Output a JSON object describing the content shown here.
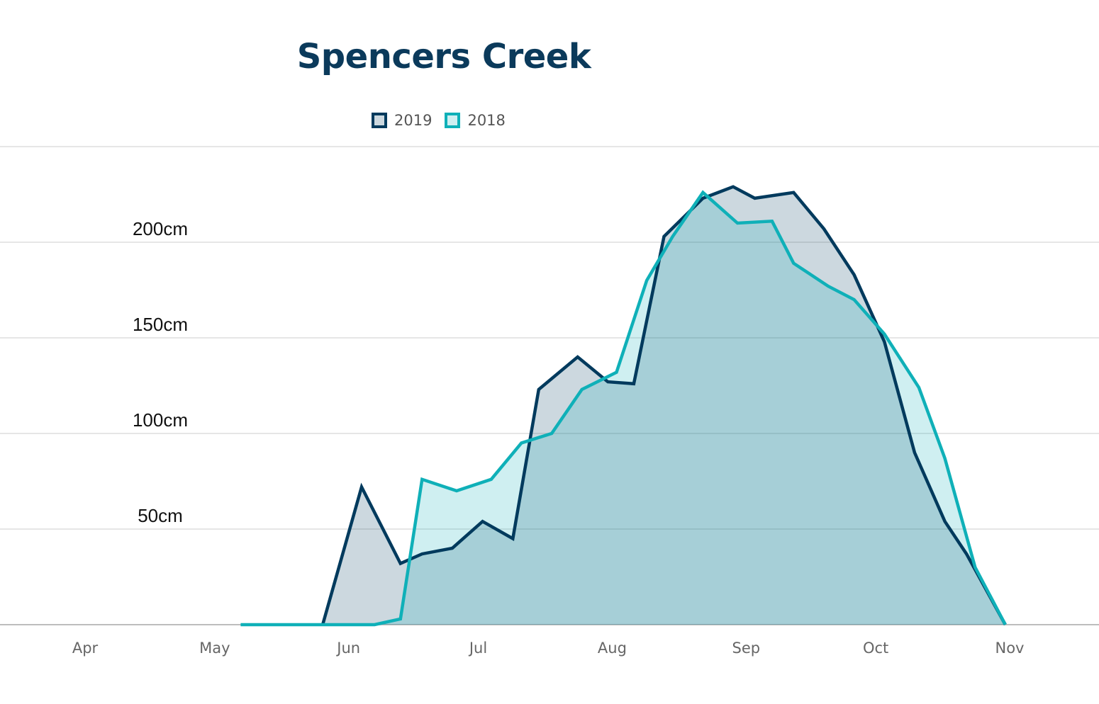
{
  "chart_data": {
    "type": "area",
    "title": "Spencers Creek",
    "xlabel": "",
    "ylabel": "",
    "x_ticks": [
      "Apr",
      "May",
      "Jun",
      "Jul",
      "Aug",
      "Sep",
      "Oct",
      "Nov"
    ],
    "x_tick_dates": [
      "04-01",
      "05-01",
      "06-01",
      "07-01",
      "08-01",
      "09-01",
      "10-01",
      "11-01"
    ],
    "y_ticks": [
      {
        "value": 50,
        "label": "50cm"
      },
      {
        "value": 100,
        "label": "100cm"
      },
      {
        "value": 150,
        "label": "150cm"
      },
      {
        "value": 200,
        "label": "200cm"
      }
    ],
    "ylim": [
      0,
      250
    ],
    "grid": true,
    "legend_position": "top",
    "series": [
      {
        "name": "2019",
        "color": "#003a5d",
        "fill": "rgba(0,58,93,0.2)",
        "points": [
          [
            "05-26",
            0
          ],
          [
            "06-04",
            72
          ],
          [
            "06-13",
            32
          ],
          [
            "06-18",
            37
          ],
          [
            "06-25",
            40
          ],
          [
            "07-02",
            54
          ],
          [
            "07-09",
            45
          ],
          [
            "07-15",
            123
          ],
          [
            "07-24",
            140
          ],
          [
            "07-31",
            127
          ],
          [
            "08-06",
            126
          ],
          [
            "08-13",
            203
          ],
          [
            "08-22",
            223
          ],
          [
            "08-29",
            229
          ],
          [
            "09-03",
            223
          ],
          [
            "09-12",
            226
          ],
          [
            "09-19",
            207
          ],
          [
            "09-26",
            183
          ],
          [
            "10-03",
            148
          ],
          [
            "10-10",
            90
          ],
          [
            "10-17",
            54
          ],
          [
            "10-22",
            37
          ],
          [
            "10-31",
            0
          ]
        ]
      },
      {
        "name": "2018",
        "color": "#0fb0b8",
        "fill": "rgba(15,176,184,0.2)",
        "points": [
          [
            "05-07",
            0
          ],
          [
            "06-07",
            0
          ],
          [
            "06-13",
            3
          ],
          [
            "06-18",
            76
          ],
          [
            "06-26",
            70
          ],
          [
            "07-04",
            76
          ],
          [
            "07-11",
            95
          ],
          [
            "07-18",
            100
          ],
          [
            "07-25",
            123
          ],
          [
            "08-02",
            132
          ],
          [
            "08-09",
            180
          ],
          [
            "08-15",
            203
          ],
          [
            "08-22",
            226
          ],
          [
            "08-30",
            210
          ],
          [
            "09-07",
            211
          ],
          [
            "09-12",
            189
          ],
          [
            "09-20",
            177
          ],
          [
            "09-26",
            170
          ],
          [
            "10-03",
            152
          ],
          [
            "10-11",
            124
          ],
          [
            "10-17",
            87
          ],
          [
            "10-24",
            30
          ],
          [
            "10-31",
            0
          ]
        ]
      }
    ]
  }
}
